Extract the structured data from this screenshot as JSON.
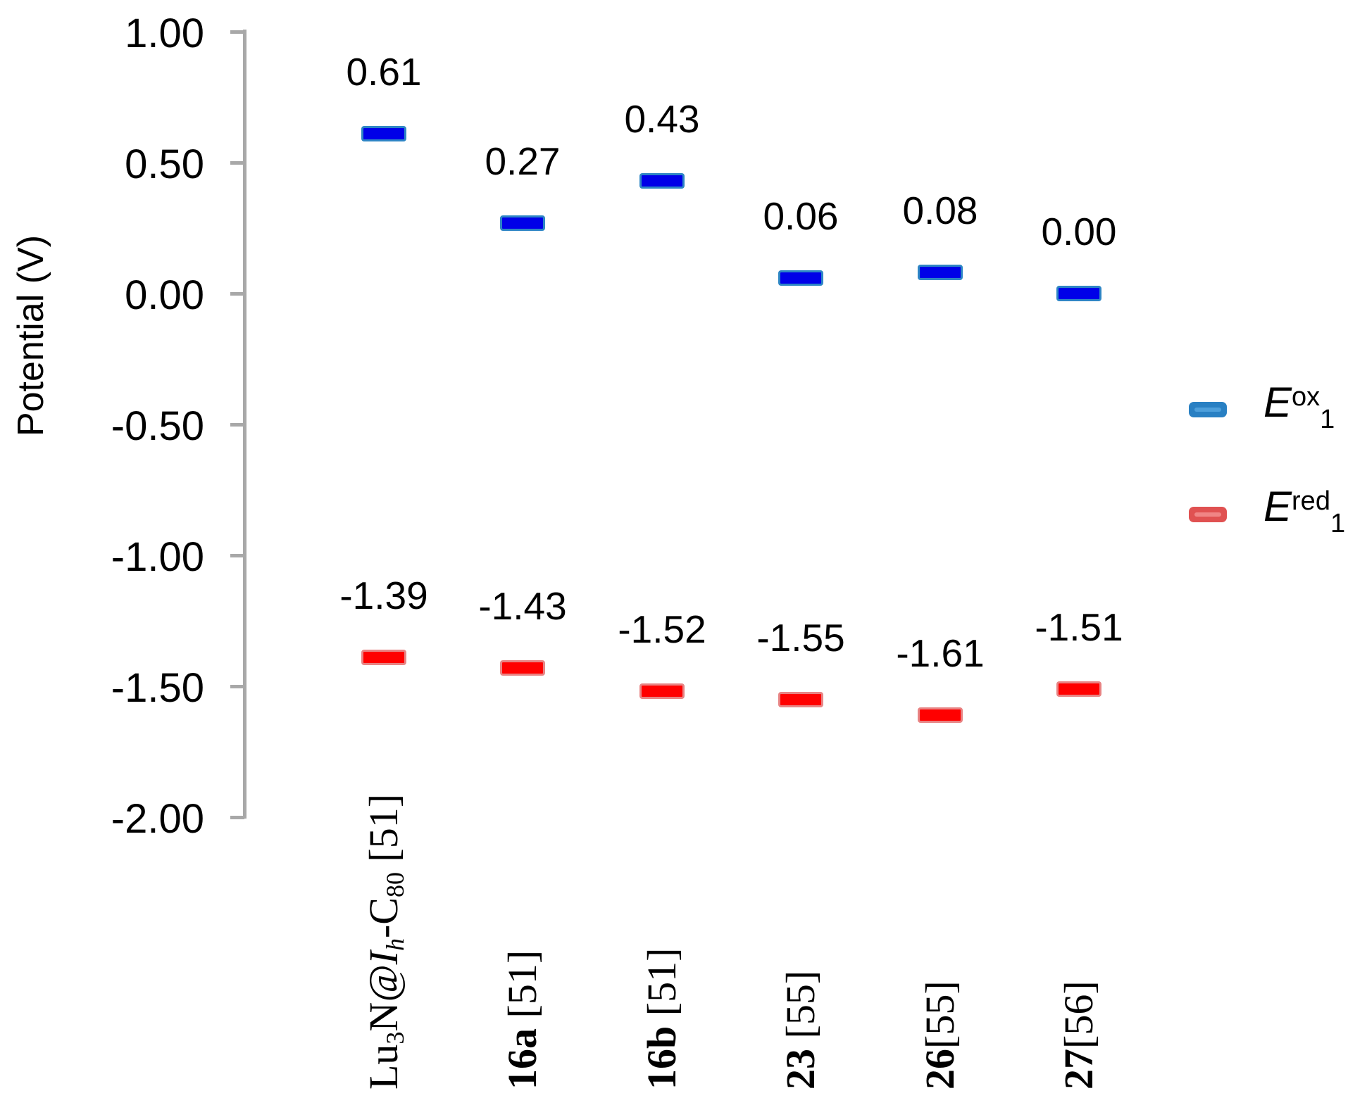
{
  "chart_data": {
    "type": "scatter",
    "title": "",
    "xlabel": "",
    "ylabel": "Potential (V)",
    "ylim": [
      -2.0,
      1.0
    ],
    "ytick_step": 0.5,
    "grid": false,
    "legend_position": "right",
    "background": "#FFFFFF",
    "axis_color": "#A8A8A8",
    "text_color": "#000000",
    "ytick_values": [
      1.0,
      0.5,
      0.0,
      -0.5,
      -1.0,
      -1.5,
      -2.0
    ],
    "ytick_labels": [
      "1.00",
      "0.50",
      "0.00",
      "-0.50",
      "-1.00",
      "-1.50",
      "-2.00"
    ],
    "categories_plain": [
      "Lu3N@Ih-C80 [51]",
      "16a [51]",
      "16b [51]",
      "23 [55]",
      "26[55]",
      "27[56]"
    ],
    "categories_rich": [
      [
        {
          "t": "Lu"
        },
        {
          "t": "3",
          "sub": true
        },
        {
          "t": "N"
        },
        {
          "t": "@",
          "italic": true
        },
        {
          "t": "I",
          "italic": true
        },
        {
          "t": "h",
          "sub": true,
          "italic": true
        },
        {
          "t": "-C"
        },
        {
          "t": "80",
          "sub": true
        },
        {
          "t": " [51]"
        }
      ],
      [
        {
          "t": "16a",
          "bold": true
        },
        {
          "t": " [51]"
        }
      ],
      [
        {
          "t": "16b",
          "bold": true
        },
        {
          "t": " [51]"
        }
      ],
      [
        {
          "t": "23",
          "bold": true
        },
        {
          "t": " [55]"
        }
      ],
      [
        {
          "t": "26",
          "bold": true
        },
        {
          "t": "[55]"
        }
      ],
      [
        {
          "t": "27",
          "bold": true
        },
        {
          "t": "[56]"
        }
      ]
    ],
    "series": [
      {
        "name": "Eox1",
        "legend_rich": [
          {
            "t": "E",
            "italic": true
          },
          {
            "t": "ox",
            "sup": true
          },
          {
            "t": "1",
            "sub": true
          }
        ],
        "values": [
          0.61,
          0.27,
          0.43,
          0.06,
          0.08,
          0.0
        ],
        "labels": [
          "0.61",
          "0.27",
          "0.43",
          "0.06",
          "0.08",
          "0.00"
        ],
        "marker_fill": "#0000E8",
        "marker_border": "#2E86C5",
        "legend_fill": "#2980C3",
        "legend_stripe": "#4D9FDB"
      },
      {
        "name": "Ered1",
        "legend_rich": [
          {
            "t": "E",
            "italic": true
          },
          {
            "t": "red",
            "sup": true
          },
          {
            "t": "1",
            "sub": true
          }
        ],
        "values": [
          -1.39,
          -1.43,
          -1.52,
          -1.55,
          -1.61,
          -1.51
        ],
        "labels": [
          "-1.39",
          "-1.43",
          "-1.52",
          "-1.55",
          "-1.61",
          "-1.51"
        ],
        "marker_fill": "#FF0000",
        "marker_border": "#E88484",
        "legend_fill": "#E05151",
        "legend_stripe": "#F08585"
      }
    ]
  }
}
